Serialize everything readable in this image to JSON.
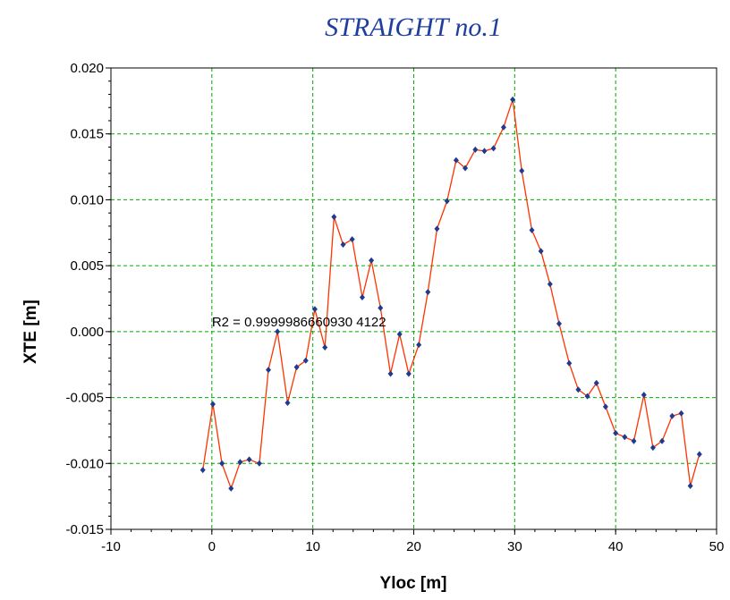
{
  "chart_data": {
    "type": "line",
    "title": "STRAIGHT no.1",
    "xlabel": "Yloc [m]",
    "ylabel": "XTE [m]",
    "xlim": [
      -10,
      50
    ],
    "ylim": [
      -0.015,
      0.02
    ],
    "xticks": [
      -10,
      0,
      10,
      20,
      30,
      40,
      50
    ],
    "yticks": [
      -0.015,
      -0.01,
      -0.005,
      0.0,
      0.005,
      0.01,
      0.015,
      0.02
    ],
    "xtick_labels": [
      "-10",
      "0",
      "10",
      "20",
      "30",
      "40",
      "50"
    ],
    "ytick_labels": [
      "-0.015",
      "-0.010",
      "-0.005",
      "0.000",
      "0.005",
      "0.010",
      "0.015",
      "0.020"
    ],
    "grid": true,
    "line_color": "#ff3300",
    "marker_color": "#1f3a8f",
    "grid_color": "#00aa00",
    "annotation": {
      "text": "R2 =  0.9999986660930 4122",
      "x": 0,
      "y": 0.0004
    },
    "series": [
      {
        "x": [
          -0.9,
          0.1,
          1.0,
          1.9,
          2.8,
          3.7,
          4.7,
          5.6,
          6.5,
          7.5,
          8.4,
          9.3,
          10.2,
          11.2,
          12.1,
          13.0,
          13.9,
          14.9,
          15.8,
          16.7,
          17.7,
          18.6,
          19.5,
          20.5,
          21.4,
          22.3,
          23.3,
          24.2,
          25.1,
          26.1,
          27.0,
          27.9,
          28.9,
          29.8,
          30.7,
          31.7,
          32.6,
          33.5,
          34.4,
          35.4,
          36.3,
          37.2,
          38.1,
          39.0,
          40.0,
          40.9,
          41.8,
          42.8,
          43.7,
          44.6,
          45.6,
          46.5,
          47.4,
          48.3
        ],
        "y": [
          -0.0105,
          -0.0055,
          -0.01,
          -0.0119,
          -0.0099,
          -0.0097,
          -0.01,
          -0.0029,
          0.0,
          -0.0054,
          -0.0027,
          -0.0022,
          0.0017,
          -0.0012,
          0.0087,
          0.0066,
          0.007,
          0.0026,
          0.0054,
          0.0018,
          -0.0032,
          -0.0002,
          -0.0032,
          -0.001,
          0.003,
          0.0078,
          0.0099,
          0.013,
          0.0124,
          0.0138,
          0.0137,
          0.0139,
          0.0155,
          0.0176,
          0.0122,
          0.0077,
          0.0061,
          0.0036,
          0.0006,
          -0.0024,
          -0.0044,
          -0.0049,
          -0.0039,
          -0.0057,
          -0.0077,
          -0.008,
          -0.0083,
          -0.0048,
          -0.0088,
          -0.0083,
          -0.0064,
          -0.0062,
          -0.0117,
          -0.0093
        ]
      }
    ]
  }
}
